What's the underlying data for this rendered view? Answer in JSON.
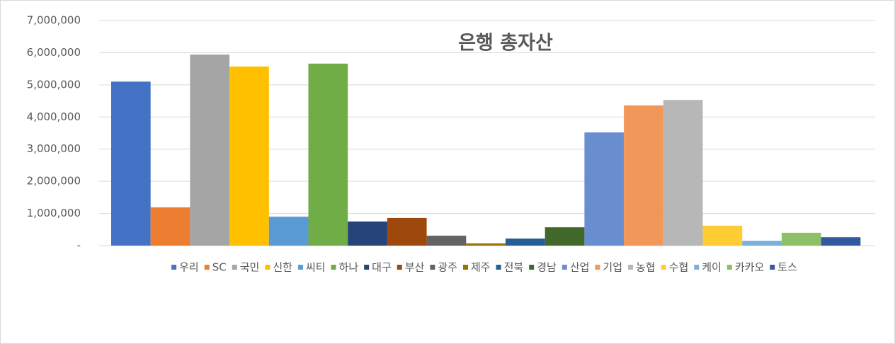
{
  "chart_data": {
    "type": "bar",
    "title": "은행 총자산",
    "categories": [
      null
    ],
    "series": [
      {
        "name": "우리",
        "color": "#4472c4",
        "values": [
          5100000
        ]
      },
      {
        "name": "SC",
        "color": "#ed7d31",
        "values": [
          1190000
        ]
      },
      {
        "name": "국민",
        "color": "#a5a5a5",
        "values": [
          5940000
        ]
      },
      {
        "name": "신한",
        "color": "#ffc000",
        "values": [
          5570000
        ]
      },
      {
        "name": "씨티",
        "color": "#5b9bd5",
        "values": [
          900000
        ]
      },
      {
        "name": "하나",
        "color": "#70ad47",
        "values": [
          5660000
        ]
      },
      {
        "name": "대구",
        "color": "#264478",
        "values": [
          750000
        ]
      },
      {
        "name": "부산",
        "color": "#9e480e",
        "values": [
          860000
        ]
      },
      {
        "name": "광주",
        "color": "#636363",
        "values": [
          310000
        ]
      },
      {
        "name": "제주",
        "color": "#997300",
        "values": [
          70000
        ]
      },
      {
        "name": "전북",
        "color": "#255e91",
        "values": [
          220000
        ]
      },
      {
        "name": "경남",
        "color": "#43682b",
        "values": [
          570000
        ]
      },
      {
        "name": "산업",
        "color": "#698ed0",
        "values": [
          3520000
        ]
      },
      {
        "name": "기업",
        "color": "#f1975a",
        "values": [
          4360000
        ]
      },
      {
        "name": "농협",
        "color": "#b7b7b7",
        "values": [
          4530000
        ]
      },
      {
        "name": "수협",
        "color": "#ffcd33",
        "values": [
          620000
        ]
      },
      {
        "name": "케이",
        "color": "#7cafdd",
        "values": [
          150000
        ]
      },
      {
        "name": "카카오",
        "color": "#8cc168",
        "values": [
          400000
        ]
      },
      {
        "name": "토스",
        "color": "#335aa1",
        "values": [
          260000
        ]
      }
    ],
    "ylim": [
      0,
      7000000
    ],
    "yticks": [
      {
        "value": 0,
        "label": "-"
      },
      {
        "value": 1000000,
        "label": "1,000,000"
      },
      {
        "value": 2000000,
        "label": "2,000,000"
      },
      {
        "value": 3000000,
        "label": "3,000,000"
      },
      {
        "value": 4000000,
        "label": "4,000,000"
      },
      {
        "value": 5000000,
        "label": "5,000,000"
      },
      {
        "value": 6000000,
        "label": "6,000,000"
      },
      {
        "value": 7000000,
        "label": "7,000,000"
      }
    ],
    "grid": true,
    "legend": "bottom"
  }
}
